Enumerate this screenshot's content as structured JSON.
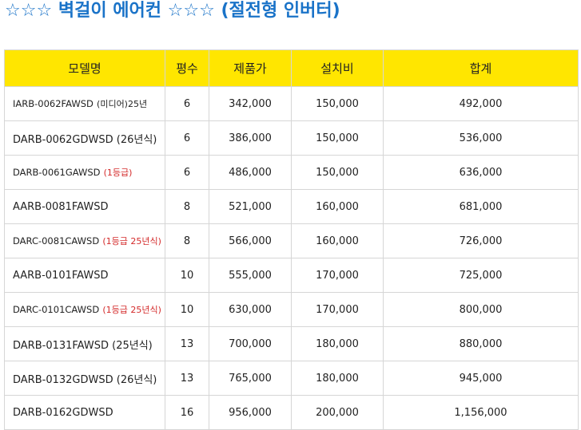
{
  "title": {
    "stars_left": "☆☆☆",
    "main": "벽걸이 에어컨",
    "stars_right": "☆☆☆",
    "sub": "(절전형 인버터)"
  },
  "table": {
    "headers": [
      "모델명",
      "평수",
      "제품가",
      "설치비",
      "합계"
    ],
    "rows": [
      {
        "model": "IARB-0062FAWSD",
        "note": "(미디어)25년",
        "note_style": "dark",
        "size": "6",
        "price": "342,000",
        "install": "150,000",
        "total": "492,000"
      },
      {
        "model": "DARB-0062GDWSD",
        "note": "(26년식)",
        "note_style": "dark-lg",
        "size": "6",
        "price": "386,000",
        "install": "150,000",
        "total": "536,000"
      },
      {
        "model": "DARB-0061GAWSD",
        "note": "(1등급)",
        "note_style": "red",
        "size": "6",
        "price": "486,000",
        "install": "150,000",
        "total": "636,000"
      },
      {
        "model": "AARB-0081FAWSD",
        "note": "",
        "note_style": "",
        "size": "8",
        "price": "521,000",
        "install": "160,000",
        "total": "681,000"
      },
      {
        "model": "DARC-0081CAWSD",
        "note": "(1등급 25년식)",
        "note_style": "red",
        "size": "8",
        "price": "566,000",
        "install": "160,000",
        "total": "726,000"
      },
      {
        "model": "AARB-0101FAWSD",
        "note": "",
        "note_style": "",
        "size": "10",
        "price": "555,000",
        "install": "170,000",
        "total": "725,000"
      },
      {
        "model": "DARC-0101CAWSD",
        "note": "(1등급 25년식)",
        "note_style": "red",
        "size": "10",
        "price": "630,000",
        "install": "170,000",
        "total": "800,000"
      },
      {
        "model": "DARB-0131FAWSD",
        "note": "(25년식)",
        "note_style": "dark-lg",
        "size": "13",
        "price": "700,000",
        "install": "180,000",
        "total": "880,000"
      },
      {
        "model": "DARB-0132GDWSD",
        "note": "(26년식)",
        "note_style": "dark-lg",
        "size": "13",
        "price": "765,000",
        "install": "180,000",
        "total": "945,000"
      },
      {
        "model": "DARB-0162GDWSD",
        "note": "",
        "note_style": "",
        "size": "16",
        "price": "956,000",
        "install": "200,000",
        "total": "1,156,000"
      }
    ]
  },
  "colors": {
    "title": "#1a73c8",
    "header_bg": "#ffe600",
    "note_red": "#d42a2a",
    "border": "#d6d6d6"
  }
}
